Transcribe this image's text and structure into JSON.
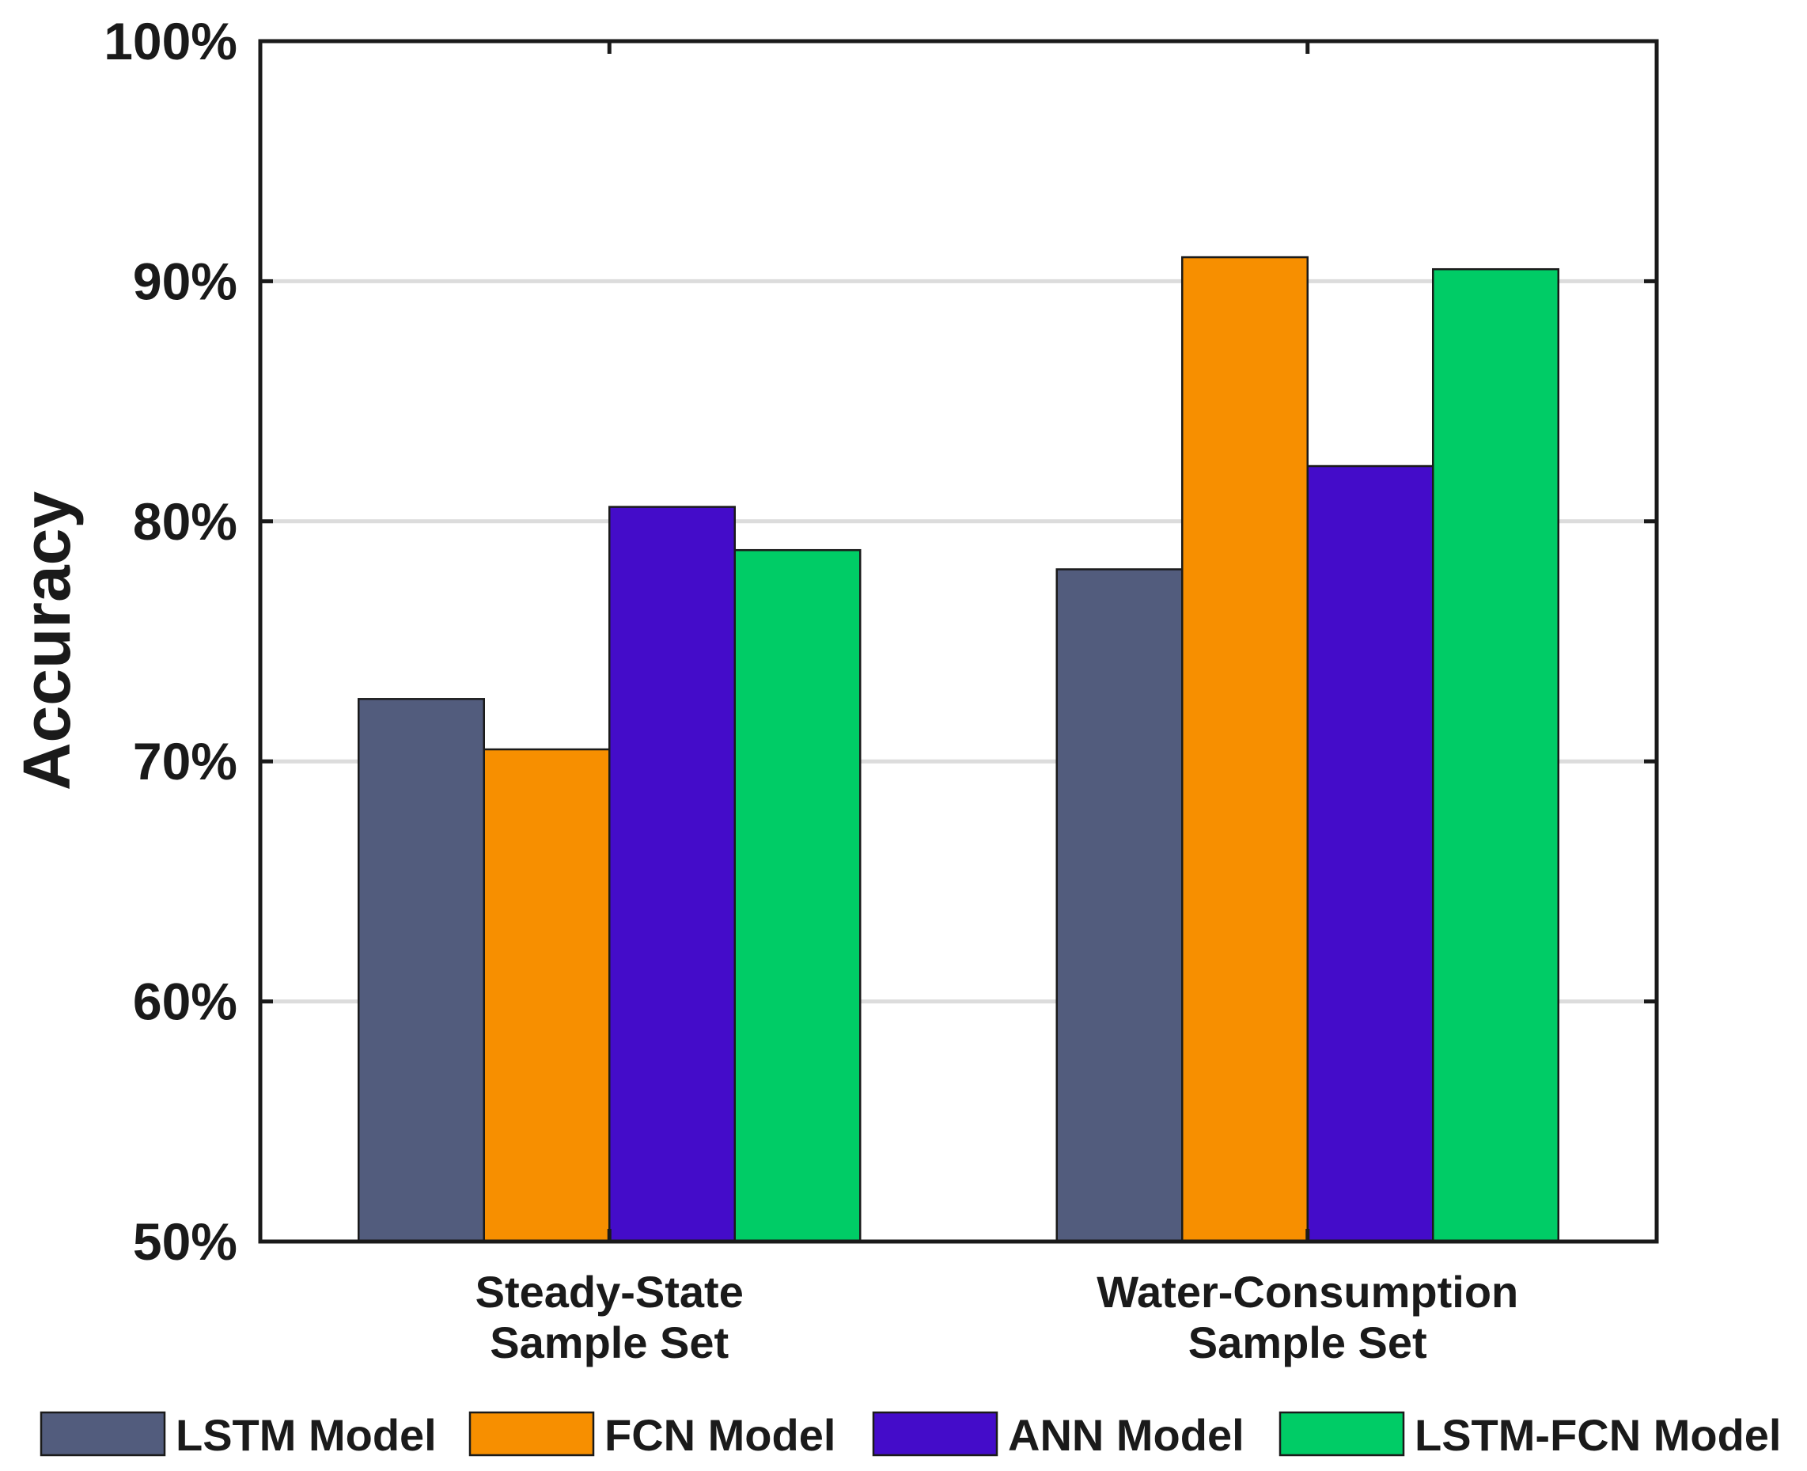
{
  "chart_data": {
    "type": "bar",
    "title": "",
    "xlabel": "",
    "ylabel": "Accuracy",
    "ylim": [
      50,
      100
    ],
    "yticks": [
      "50%",
      "60%",
      "70%",
      "80%",
      "90%",
      "100%"
    ],
    "grid": true,
    "categories": [
      [
        "Steady-State",
        "Sample Set"
      ],
      [
        "Water-Consumption",
        "Sample Set"
      ]
    ],
    "series": [
      {
        "name": "LSTM Model",
        "color": "#525c7d",
        "values": [
          72.6,
          78.0
        ]
      },
      {
        "name": "FCN Model",
        "color": "#f78f00",
        "values": [
          70.5,
          91.0
        ]
      },
      {
        "name": "ANN Model",
        "color": "#440cc9",
        "values": [
          80.6,
          82.3
        ]
      },
      {
        "name": "LSTM-FCN Model",
        "color": "#00cc66",
        "values": [
          78.8,
          90.5
        ]
      }
    ],
    "legend_position": "bottom"
  }
}
